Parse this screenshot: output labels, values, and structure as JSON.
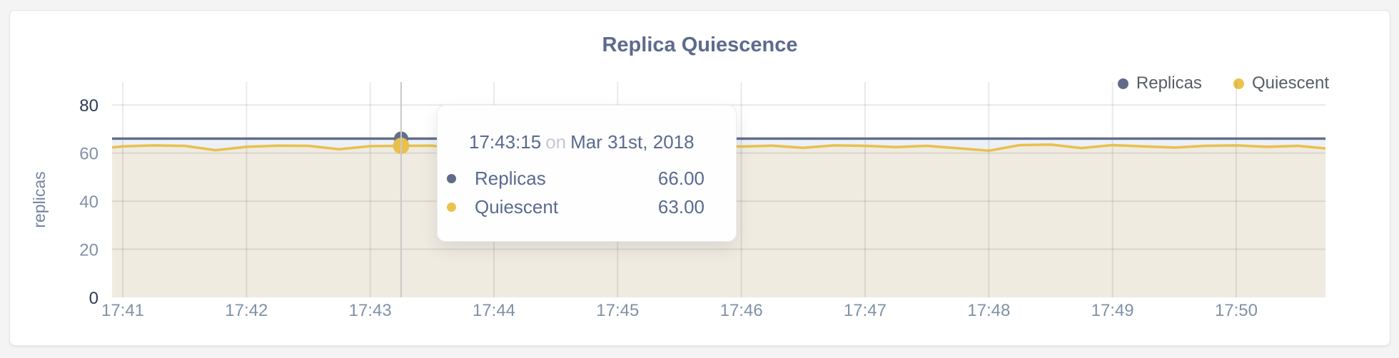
{
  "header": {
    "title": "Replica Quiescence"
  },
  "legend": [
    {
      "label": "Replicas",
      "color": "#5f6b88"
    },
    {
      "label": "Quiescent",
      "color": "#eac24e"
    }
  ],
  "tooltip": {
    "time": "17:43:15",
    "on_word": "on",
    "date": "Mar 31st, 2018",
    "rows": [
      {
        "label": "Replicas",
        "value": "66.00",
        "color": "#5f6b88"
      },
      {
        "label": "Quiescent",
        "value": "63.00",
        "color": "#eac24e"
      }
    ]
  },
  "axes": {
    "y_axis_title": "replicas",
    "y_tick_labels": [
      "0",
      "20",
      "40",
      "60",
      "80"
    ],
    "x_tick_labels": [
      "17:41",
      "17:42",
      "17:43",
      "17:44",
      "17:45",
      "17:46",
      "17:47",
      "17:48",
      "17:49",
      "17:50"
    ]
  },
  "chart_data": {
    "type": "area",
    "title": "Replica Quiescence",
    "xlabel": "",
    "ylabel": "replicas",
    "ylim": [
      0,
      80
    ],
    "y_ticks": [
      0,
      20,
      40,
      60,
      80
    ],
    "x_tick_labels": [
      "17:41",
      "17:42",
      "17:43",
      "17:44",
      "17:45",
      "17:46",
      "17:47",
      "17:48",
      "17:49",
      "17:50"
    ],
    "grid": true,
    "legend_position": "top-right",
    "x": [
      "17:40:45",
      "17:41:00",
      "17:41:15",
      "17:41:30",
      "17:41:45",
      "17:42:00",
      "17:42:15",
      "17:42:30",
      "17:42:45",
      "17:43:00",
      "17:43:15",
      "17:43:30",
      "17:43:45",
      "17:44:00",
      "17:44:15",
      "17:44:30",
      "17:44:45",
      "17:45:00",
      "17:45:15",
      "17:45:30",
      "17:45:45",
      "17:46:00",
      "17:46:15",
      "17:46:30",
      "17:46:45",
      "17:47:00",
      "17:47:15",
      "17:47:30",
      "17:47:45",
      "17:48:00",
      "17:48:15",
      "17:48:30",
      "17:48:45",
      "17:49:00",
      "17:49:15",
      "17:49:30",
      "17:49:45",
      "17:50:00",
      "17:50:15",
      "17:50:30",
      "17:50:45"
    ],
    "series": [
      {
        "name": "Replicas",
        "line_color": "#636f8a",
        "fill_color": "#edf0f6",
        "values": [
          66,
          66,
          66,
          66,
          66,
          66,
          66,
          66,
          66,
          66,
          66,
          66,
          66,
          66,
          66,
          66,
          66,
          66,
          66,
          66,
          66,
          66,
          66,
          66,
          66,
          66,
          66,
          66,
          66,
          66,
          66,
          66,
          66,
          66,
          66,
          66,
          66,
          66,
          66,
          66,
          66
        ]
      },
      {
        "name": "Quiescent",
        "line_color": "#e8c04c",
        "fill_color": "#efebe1",
        "values": [
          61.5,
          62.8,
          63.2,
          63.0,
          61.2,
          62.6,
          63.1,
          63.0,
          61.6,
          62.9,
          63.0,
          63.1,
          61.6,
          62.7,
          63.2,
          61.4,
          62.9,
          63.0,
          62.4,
          63.0,
          63.2,
          62.7,
          63.1,
          62.2,
          63.2,
          63.0,
          62.5,
          63.0,
          62.0,
          61.0,
          63.3,
          63.5,
          62.1,
          63.3,
          62.8,
          62.3,
          63.0,
          63.2,
          62.6,
          63.0,
          61.8
        ]
      }
    ],
    "hover_point": {
      "time": "17:43:15",
      "date": "Mar 31st, 2018",
      "values": {
        "Replicas": 66.0,
        "Quiescent": 63.0
      }
    }
  }
}
